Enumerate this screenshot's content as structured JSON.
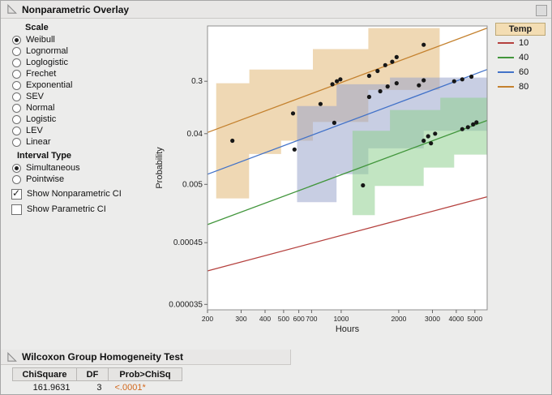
{
  "panel": {
    "title": "Nonparametric Overlay"
  },
  "controls": {
    "scale": {
      "label": "Scale",
      "options": [
        {
          "label": "Weibull",
          "selected": true
        },
        {
          "label": "Lognormal",
          "selected": false
        },
        {
          "label": "Loglogistic",
          "selected": false
        },
        {
          "label": "Frechet",
          "selected": false
        },
        {
          "label": "Exponential",
          "selected": false
        },
        {
          "label": "SEV",
          "selected": false
        },
        {
          "label": "Normal",
          "selected": false
        },
        {
          "label": "Logistic",
          "selected": false
        },
        {
          "label": "LEV",
          "selected": false
        },
        {
          "label": "Linear",
          "selected": false
        }
      ]
    },
    "interval_type": {
      "label": "Interval Type",
      "options": [
        {
          "label": "Simultaneous",
          "selected": true
        },
        {
          "label": "Pointwise",
          "selected": false
        }
      ]
    },
    "checkboxes": [
      {
        "label": "Show Nonparametric CI",
        "checked": true
      },
      {
        "label": "Show Parametric CI",
        "checked": false
      }
    ]
  },
  "chart_data": {
    "type": "scatter",
    "title": "",
    "xlabel": "Hours",
    "ylabel": "Probability",
    "x_scale": "log",
    "y_scale": "weibull-probability",
    "xlim": [
      200,
      5800
    ],
    "ylim": [
      2.8e-05,
      0.97
    ],
    "x_ticks": [
      200,
      300,
      400,
      500,
      600,
      700,
      1000,
      2000,
      3000,
      4000,
      5000
    ],
    "x_tick_labels": [
      "200",
      "300",
      "400",
      "500",
      "600",
      "700",
      "1000",
      "2000",
      "3000",
      "4000",
      "5000"
    ],
    "y_ticks": [
      0.3,
      0.04,
      0.005,
      0.00045,
      3.5e-05
    ],
    "y_tick_labels": [
      "0.3",
      "0.04",
      "0.005",
      "0.00045",
      "0.000035"
    ],
    "grid": false,
    "legend": {
      "title": "Temp",
      "position": "right"
    },
    "series": [
      {
        "name": "10",
        "color": "#b5413e",
        "fit_line": {
          "x": [
            200,
            5800
          ],
          "p": [
            0.00014,
            0.003
          ]
        },
        "points": [],
        "ci_fill": null,
        "ci_region": null
      },
      {
        "name": "40",
        "color": "#42963c",
        "fit_line": {
          "x": [
            200,
            5800
          ],
          "p": [
            0.00095,
            0.068
          ]
        },
        "points": [
          [
            1300,
            0.0048
          ],
          [
            2700,
            0.03
          ],
          [
            2850,
            0.036
          ],
          [
            2950,
            0.027
          ],
          [
            3100,
            0.04
          ],
          [
            4300,
            0.048
          ],
          [
            4600,
            0.052
          ],
          [
            4900,
            0.058
          ],
          [
            5100,
            0.063
          ]
        ],
        "ci_fill": "#8fd08f",
        "ci_region": [
          [
            1146,
            0.0014
          ],
          [
            1500,
            0.0014
          ],
          [
            1500,
            0.0047
          ],
          [
            2700,
            0.0047
          ],
          [
            2700,
            0.01
          ],
          [
            3900,
            0.01
          ],
          [
            3900,
            0.017
          ],
          [
            5800,
            0.017
          ],
          [
            5800,
            0.165
          ],
          [
            3300,
            0.165
          ],
          [
            3300,
            0.103
          ],
          [
            1800,
            0.103
          ],
          [
            1800,
            0.045
          ],
          [
            1146,
            0.045
          ]
        ]
      },
      {
        "name": "60",
        "color": "#4272c8",
        "fit_line": {
          "x": [
            200,
            5800
          ],
          "p": [
            0.0076,
            0.44
          ]
        },
        "points": [
          [
            570,
            0.021
          ],
          [
            920,
            0.062
          ],
          [
            1400,
            0.17
          ],
          [
            1600,
            0.21
          ],
          [
            1750,
            0.25
          ],
          [
            1950,
            0.28
          ],
          [
            2550,
            0.26
          ],
          [
            2700,
            0.31
          ],
          [
            3900,
            0.3
          ],
          [
            4300,
            0.32
          ],
          [
            4800,
            0.35
          ]
        ],
        "ci_fill": "#9aa6cc",
        "ci_region": [
          [
            588,
            0.0024
          ],
          [
            946,
            0.0024
          ],
          [
            946,
            0.0076
          ],
          [
            1387,
            0.0076
          ],
          [
            1387,
            0.022
          ],
          [
            2700,
            0.022
          ],
          [
            2700,
            0.045
          ],
          [
            5800,
            0.045
          ],
          [
            5800,
            0.34
          ],
          [
            1800,
            0.34
          ],
          [
            1800,
            0.27
          ],
          [
            946,
            0.27
          ],
          [
            946,
            0.12
          ],
          [
            588,
            0.12
          ]
        ]
      },
      {
        "name": "80",
        "color": "#c4812e",
        "fit_line": {
          "x": [
            200,
            5800
          ],
          "p": [
            0.042,
            0.96
          ]
        },
        "points": [
          [
            270,
            0.03
          ],
          [
            560,
            0.09
          ],
          [
            780,
            0.13
          ],
          [
            900,
            0.27
          ],
          [
            950,
            0.3
          ],
          [
            990,
            0.32
          ],
          [
            1400,
            0.36
          ],
          [
            1550,
            0.42
          ],
          [
            1700,
            0.5
          ],
          [
            1850,
            0.55
          ],
          [
            1950,
            0.62
          ],
          [
            2700,
            0.8
          ]
        ],
        "ci_fill": "#e2b877",
        "ci_region": [
          [
            222,
            0.0028
          ],
          [
            330,
            0.0028
          ],
          [
            330,
            0.0174
          ],
          [
            485,
            0.0174
          ],
          [
            485,
            0.03
          ],
          [
            711,
            0.03
          ],
          [
            711,
            0.064
          ],
          [
            1387,
            0.064
          ],
          [
            1387,
            0.22
          ],
          [
            3273,
            0.22
          ],
          [
            3273,
            0.96
          ],
          [
            1387,
            0.96
          ],
          [
            1387,
            0.74
          ],
          [
            711,
            0.74
          ],
          [
            711,
            0.44
          ],
          [
            331,
            0.44
          ],
          [
            331,
            0.28
          ],
          [
            222,
            0.28
          ]
        ]
      }
    ]
  },
  "wilcoxon": {
    "title": "Wilcoxon Group Homogeneity Test",
    "columns": [
      "ChiSquare",
      "DF",
      "Prob>ChiSq"
    ],
    "rows": [
      [
        "161.9631",
        "3",
        "<.0001*"
      ]
    ],
    "significant_color": "#d2691e"
  }
}
